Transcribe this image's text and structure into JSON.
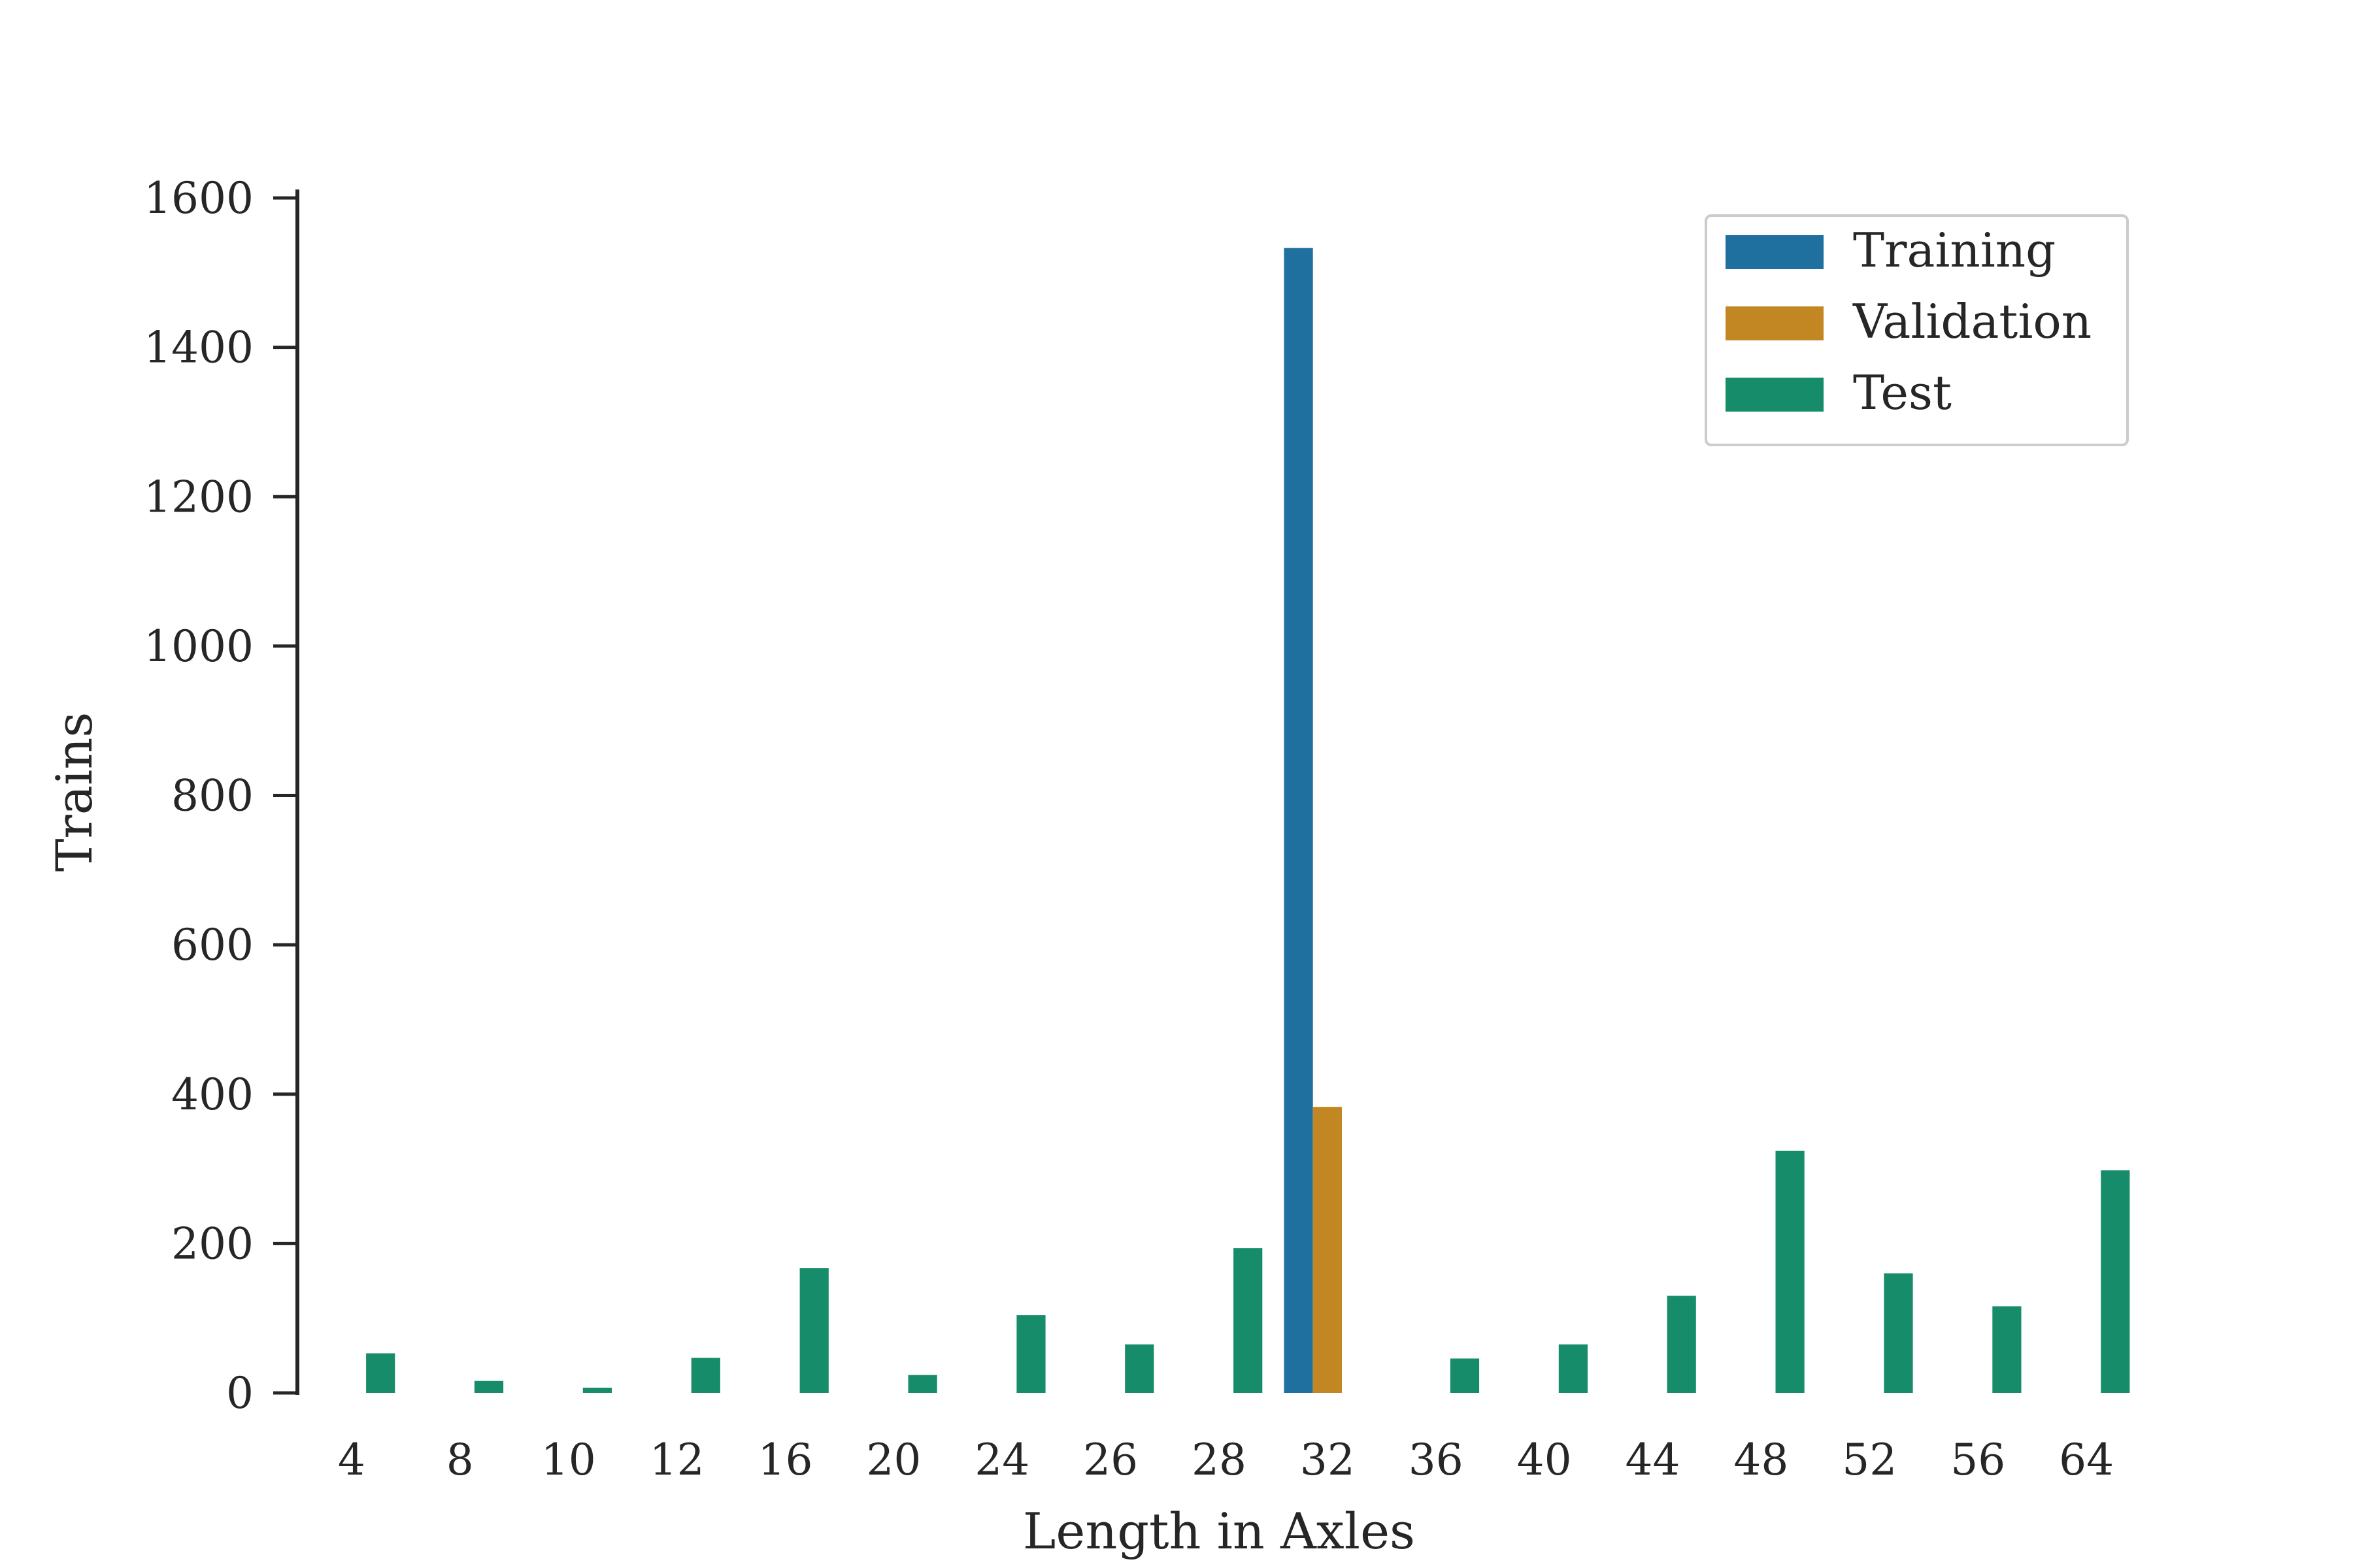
{
  "chart_data": {
    "type": "bar",
    "title": "",
    "xlabel": "Length in Axles",
    "ylabel": "Trains",
    "categories": [
      "4",
      "8",
      "10",
      "12",
      "16",
      "20",
      "24",
      "26",
      "28",
      "32",
      "36",
      "40",
      "44",
      "48",
      "52",
      "56",
      "64"
    ],
    "series": [
      {
        "name": "Training",
        "color": "#1f6f9f",
        "values": [
          0,
          0,
          0,
          0,
          0,
          0,
          0,
          0,
          0,
          1533,
          0,
          0,
          0,
          0,
          0,
          0,
          0
        ]
      },
      {
        "name": "Validation",
        "color": "#c28622",
        "values": [
          0,
          0,
          0,
          0,
          0,
          0,
          0,
          0,
          0,
          383,
          0,
          0,
          0,
          0,
          0,
          0,
          0
        ]
      },
      {
        "name": "Test",
        "color": "#178c6a",
        "values": [
          53,
          16,
          7,
          47,
          167,
          24,
          104,
          65,
          194,
          0,
          46,
          65,
          130,
          324,
          160,
          116,
          298
        ]
      }
    ],
    "yticks": [
      0,
      200,
      400,
      600,
      800,
      1000,
      1200,
      1400,
      1600
    ],
    "ylim": [
      0,
      1600
    ],
    "grid": false,
    "legend": "top-right"
  }
}
